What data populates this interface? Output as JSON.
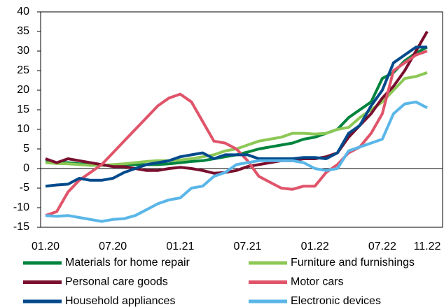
{
  "chart_data": {
    "type": "line",
    "categories": [
      "01.20",
      null,
      null,
      null,
      null,
      null,
      "07.20",
      null,
      null,
      null,
      null,
      null,
      "01.21",
      null,
      null,
      null,
      null,
      null,
      "07.21",
      null,
      null,
      null,
      null,
      null,
      "01.22",
      null,
      null,
      null,
      null,
      null,
      "07.22",
      null,
      null,
      null,
      "11.22"
    ],
    "series": [
      {
        "name": "Materials for home repair",
        "color": "#00843d",
        "values": [
          2,
          1.5,
          1.5,
          1.2,
          1,
          0.8,
          0.8,
          1,
          1,
          1,
          1,
          1.2,
          1.5,
          1.8,
          2,
          2.5,
          3,
          3.5,
          4.2,
          5,
          5.5,
          6,
          6.5,
          7.5,
          8,
          9,
          10,
          13,
          15,
          17,
          23,
          24.5,
          27.5,
          29.5,
          31
        ]
      },
      {
        "name": "Furniture and furnishings",
        "color": "#8cc856",
        "values": [
          1.5,
          1.3,
          1.2,
          1,
          0.8,
          0.8,
          1,
          1.2,
          1.5,
          1.8,
          2,
          2,
          2.2,
          2.5,
          3,
          3.5,
          4.5,
          5,
          6,
          7,
          7.5,
          8,
          9,
          9,
          8.8,
          9,
          10,
          10.5,
          13,
          15,
          17,
          20,
          23,
          23.5,
          24.5
        ]
      },
      {
        "name": "Personal care goods",
        "color": "#7a0f2e",
        "values": [
          2.5,
          1.5,
          2.5,
          2,
          1.5,
          1,
          0.5,
          0.5,
          0,
          -0.5,
          -0.5,
          0,
          0.3,
          0,
          -0.5,
          -1.2,
          -1,
          -0.5,
          0.5,
          1,
          1.5,
          2,
          2,
          2.5,
          2.5,
          3,
          4,
          8,
          11,
          14,
          18,
          21,
          25,
          30,
          35
        ]
      },
      {
        "name": "Motor cars",
        "color": "#e0546a",
        "values": [
          -12,
          -11,
          -6,
          -3,
          -1,
          1,
          4,
          7,
          10,
          13,
          16,
          18,
          19,
          17,
          12,
          7,
          6.5,
          5,
          2,
          -2,
          -3.5,
          -5,
          -5.3,
          -4.5,
          -4.5,
          -1,
          1,
          4,
          5.5,
          9,
          14,
          25,
          27,
          29,
          30
        ]
      },
      {
        "name": "Household appliances",
        "color": "#004a8c",
        "values": [
          -4.5,
          -4.2,
          -4,
          -2.5,
          -3,
          -3,
          -2.5,
          -1,
          0,
          1,
          1.5,
          2,
          3,
          3.5,
          4,
          2.5,
          3.5,
          3.5,
          3.5,
          2.5,
          2.5,
          2.5,
          2.5,
          2.8,
          2.8,
          2.5,
          4,
          9,
          11,
          16,
          20,
          27,
          29,
          31,
          31
        ]
      },
      {
        "name": "Electronic devices",
        "color": "#5ab6e8",
        "values": [
          -12,
          -12.2,
          -12,
          -12.5,
          -13,
          -13.5,
          -13,
          -12.8,
          -12,
          -10.5,
          -9,
          -8,
          -7.5,
          -5,
          -4.5,
          -2,
          -1,
          1,
          1.5,
          2,
          2,
          2,
          2,
          1.5,
          0,
          -0.5,
          0,
          4.5,
          5.5,
          6.5,
          7.5,
          14,
          16.5,
          17,
          15.5
        ]
      }
    ],
    "ylim": [
      -15,
      40
    ],
    "yticks": [
      -15,
      -10,
      -5,
      0,
      5,
      10,
      15,
      20,
      25,
      30,
      35,
      40
    ],
    "grid": false,
    "legend": "bottom"
  }
}
